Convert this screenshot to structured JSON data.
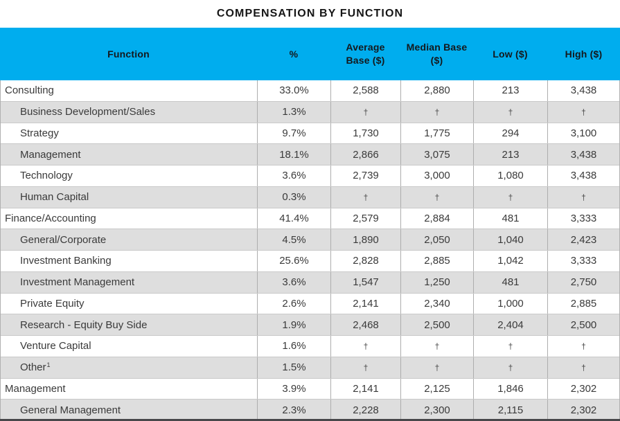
{
  "chart_data": {
    "type": "table",
    "title": "COMPENSATION BY FUNCTION",
    "columns": [
      "Function",
      "%",
      "Average Base ($)",
      "Median Base ($)",
      "Low ($)",
      "High ($)"
    ],
    "no_data_symbol": "†",
    "rows": [
      {
        "function": "Consulting",
        "indent": false,
        "values": [
          "33.0%",
          "2,588",
          "2,880",
          "213",
          "3,438"
        ]
      },
      {
        "function": "Business Development/Sales",
        "indent": true,
        "values": [
          "1.3%",
          "†",
          "†",
          "†",
          "†"
        ]
      },
      {
        "function": "Strategy",
        "indent": true,
        "values": [
          "9.7%",
          "1,730",
          "1,775",
          "294",
          "3,100"
        ]
      },
      {
        "function": "Management",
        "indent": true,
        "values": [
          "18.1%",
          "2,866",
          "3,075",
          "213",
          "3,438"
        ]
      },
      {
        "function": "Technology",
        "indent": true,
        "values": [
          "3.6%",
          "2,739",
          "3,000",
          "1,080",
          "3,438"
        ]
      },
      {
        "function": "Human Capital",
        "indent": true,
        "values": [
          "0.3%",
          "†",
          "†",
          "†",
          "†"
        ]
      },
      {
        "function": "Finance/Accounting",
        "indent": false,
        "values": [
          "41.4%",
          "2,579",
          "2,884",
          "481",
          "3,333"
        ]
      },
      {
        "function": "General/Corporate",
        "indent": true,
        "values": [
          "4.5%",
          "1,890",
          "2,050",
          "1,040",
          "2,423"
        ]
      },
      {
        "function": "Investment Banking",
        "indent": true,
        "values": [
          "25.6%",
          "2,828",
          "2,885",
          "1,042",
          "3,333"
        ]
      },
      {
        "function": "Investment Management",
        "indent": true,
        "values": [
          "3.6%",
          "1,547",
          "1,250",
          "481",
          "2,750"
        ]
      },
      {
        "function": "Private Equity",
        "indent": true,
        "values": [
          "2.6%",
          "2,141",
          "2,340",
          "1,000",
          "2,885"
        ]
      },
      {
        "function": "Research - Equity Buy Side",
        "indent": true,
        "values": [
          "1.9%",
          "2,468",
          "2,500",
          "2,404",
          "2,500"
        ]
      },
      {
        "function": "Venture Capital",
        "indent": true,
        "values": [
          "1.6%",
          "†",
          "†",
          "†",
          "†"
        ]
      },
      {
        "function": "Other",
        "footnote": "1",
        "indent": true,
        "values": [
          "1.5%",
          "†",
          "†",
          "†",
          "†"
        ]
      },
      {
        "function": "Management",
        "indent": false,
        "values": [
          "3.9%",
          "2,141",
          "2,125",
          "1,846",
          "2,302"
        ]
      },
      {
        "function": "General Management",
        "indent": true,
        "values": [
          "2.3%",
          "2,228",
          "2,300",
          "2,115",
          "2,302"
        ]
      }
    ],
    "colors": {
      "header_bg": "#00ADEE",
      "alt_row_bg": "#DEDEDE",
      "bottom_bar": "#47474A"
    },
    "legend_position": "none",
    "grid": true
  }
}
